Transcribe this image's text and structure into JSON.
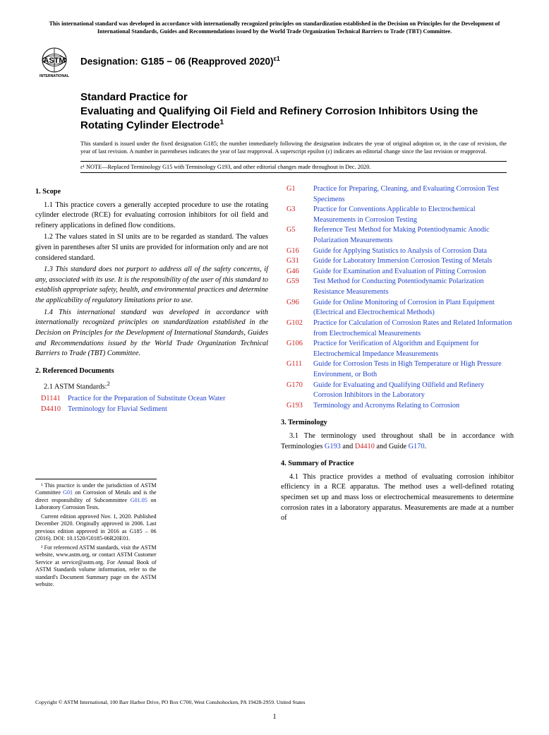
{
  "top_notice": "This international standard was developed in accordance with internationally recognized principles on standardization established in the Decision on Principles for the Development of International Standards, Guides and Recommendations issued by the World Trade Organization Technical Barriers to Trade (TBT) Committee.",
  "logo": {
    "top_text": "ASTM",
    "bottom_text": "INTERNATIONAL"
  },
  "designation": {
    "label": "Designation: G185 − 06 (Reapproved 2020)",
    "super": "ε1"
  },
  "title": {
    "line1": "Standard Practice for",
    "line2": "Evaluating and Qualifying Oil Field and Refinery Corrosion Inhibitors Using the Rotating Cylinder Electrode",
    "super": "1"
  },
  "issued_note": "This standard is issued under the fixed designation G185; the number immediately following the designation indicates the year of original adoption or, in the case of revision, the year of last revision. A number in parentheses indicates the year of last reapproval. A superscript epsilon (ε) indicates an editorial change since the last revision or reapproval.",
  "eps_note": "ε¹ NOTE—Replaced Terminology G15 with Terminology G193, and other editorial changes made throughout in Dec. 2020.",
  "sections": {
    "scope": {
      "head": "1. Scope",
      "p1_1": "1.1 This practice covers a generally accepted procedure to use the rotating cylinder electrode (RCE) for evaluating corrosion inhibitors for oil field and refinery applications in defined flow conditions.",
      "p1_2": "1.2 The values stated in SI units are to be regarded as standard. The values given in parentheses after SI units are provided for information only and are not considered standard.",
      "p1_3": "1.3 This standard does not purport to address all of the safety concerns, if any, associated with its use. It is the responsibility of the user of this standard to establish appropriate safety, health, and environmental practices and determine the applicability of regulatory limitations prior to use.",
      "p1_4": "1.4 This international standard was developed in accordance with internationally recognized principles on standardization established in the Decision on Principles for the Development of International Standards, Guides and Recommendations issued by the World Trade Organization Technical Barriers to Trade (TBT) Committee."
    },
    "refdocs": {
      "head": "2. Referenced Documents",
      "sub": "2.1 ASTM Standards:",
      "sub_sup": "2"
    },
    "terminology": {
      "head": "3. Terminology",
      "p3_1_pre": "3.1 The terminology used throughout shall be in accordance with Terminologies ",
      "p3_1_mid": " and ",
      "p3_1_mid2": " and Guide ",
      "p3_1_end": "."
    },
    "summary": {
      "head": "4. Summary of Practice",
      "p4_1": "4.1 This practice provides a method of evaluating corrosion inhibitor efficiency in a RCE apparatus. The method uses a well-defined rotating specimen set up and mass loss or electrochemical measurements to determine corrosion rates in a laboratory apparatus. Measurements are made at a number of"
    }
  },
  "refs_left": [
    {
      "code": "D1141",
      "title": "Practice for the Preparation of Substitute Ocean Water"
    },
    {
      "code": "D4410",
      "title": "Terminology for Fluvial Sediment"
    }
  ],
  "refs_right": [
    {
      "code": "G1",
      "title": "Practice for Preparing, Cleaning, and Evaluating Corrosion Test Specimens"
    },
    {
      "code": "G3",
      "title": "Practice for Conventions Applicable to Electrochemical Measurements in Corrosion Testing"
    },
    {
      "code": "G5",
      "title": "Reference Test Method for Making Potentiodynamic Anodic Polarization Measurements"
    },
    {
      "code": "G16",
      "title": "Guide for Applying Statistics to Analysis of Corrosion Data"
    },
    {
      "code": "G31",
      "title": "Guide for Laboratory Immersion Corrosion Testing of Metals"
    },
    {
      "code": "G46",
      "title": "Guide for Examination and Evaluation of Pitting Corrosion"
    },
    {
      "code": "G59",
      "title": "Test Method for Conducting Potentiodynamic Polarization Resistance Measurements"
    },
    {
      "code": "G96",
      "title": "Guide for Online Monitoring of Corrosion in Plant Equipment (Electrical and Electrochemical Methods)"
    },
    {
      "code": "G102",
      "title": "Practice for Calculation of Corrosion Rates and Related Information from Electrochemical Measurements"
    },
    {
      "code": "G106",
      "title": "Practice for Verification of Algorithm and Equipment for Electrochemical Impedance Measurements"
    },
    {
      "code": "G111",
      "title": "Guide for Corrosion Tests in High Temperature or High Pressure Environment, or Both"
    },
    {
      "code": "G170",
      "title": "Guide for Evaluating and Qualifying Oilfield and Refinery Corrosion Inhibitors in the Laboratory"
    },
    {
      "code": "G193",
      "title": "Terminology and Acronyms Relating to Corrosion"
    }
  ],
  "inline_refs": {
    "g193": "G193",
    "d4410": "D4410",
    "g170": "G170",
    "g01": "G01",
    "g01_05": "G01.05"
  },
  "footnotes": {
    "f1_pre": "¹ This practice is under the jurisdiction of ASTM Committee ",
    "f1_mid": " on Corrosion of Metals and is the direct responsibility of Subcommittee ",
    "f1_end": " on Laboratory Corrosion Tests.",
    "f1b": "Current edition approved Nov. 1, 2020. Published December 2020. Originally approved in 2006. Last previous edition approved in 2016 as G185 – 06 (2016). DOI: 10.1520/G0185-06R20E01.",
    "f2": "² For referenced ASTM standards, visit the ASTM website, www.astm.org, or contact ASTM Customer Service at service@astm.org. For Annual Book of ASTM Standards volume information, refer to the standard's Document Summary page on the ASTM website."
  },
  "copyright": "Copyright © ASTM International, 100 Barr Harbor Drive, PO Box C700, West Conshohocken, PA 19428-2959. United States",
  "page_number": "1",
  "colors": {
    "link": "#2244cc",
    "code": "#cc2222"
  }
}
